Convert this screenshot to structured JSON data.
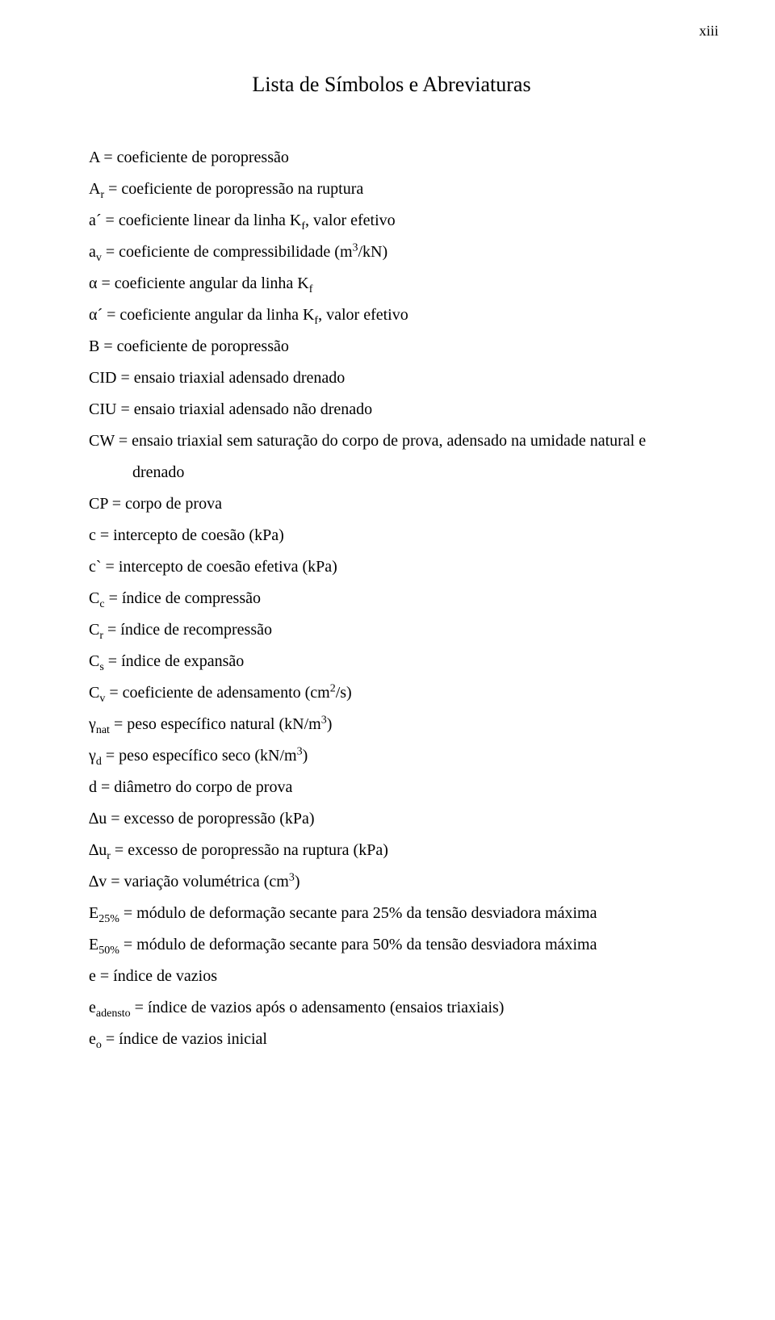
{
  "page_number": "xiii",
  "title": "Lista de Símbolos e Abreviaturas",
  "entries": [
    {
      "html": "A = coeficiente de poropressão"
    },
    {
      "html": "A<sub>r</sub> = coeficiente de poropressão na ruptura"
    },
    {
      "html": "a´ = coeficiente linear da linha K<sub>f</sub>, valor efetivo"
    },
    {
      "html": "a<sub>v</sub> = coeficiente de compressibilidade (m<sup>3</sup>/kN)"
    },
    {
      "html": "α = coeficiente angular da linha K<sub>f</sub>"
    },
    {
      "html": "α´ = coeficiente angular da linha K<sub>f</sub>, valor efetivo"
    },
    {
      "html": "B = coeficiente de poropressão"
    },
    {
      "html": "CID = ensaio triaxial adensado drenado"
    },
    {
      "html": "CIU = ensaio triaxial adensado não drenado"
    },
    {
      "html": "CW = ensaio triaxial sem saturação do corpo de prova, adensado na umidade natural e"
    },
    {
      "html": "drenado",
      "indent": true
    },
    {
      "html": "CP = corpo de prova"
    },
    {
      "html": "c = intercepto de coesão (kPa)"
    },
    {
      "html": "c` = intercepto de coesão efetiva (kPa)"
    },
    {
      "html": "C<sub>c</sub> = índice de compressão"
    },
    {
      "html": "C<sub>r</sub> = índice de recompressão"
    },
    {
      "html": "C<sub>s</sub> = índice de expansão"
    },
    {
      "html": "C<sub>v</sub> = coeficiente de adensamento (cm<sup>2</sup>/s)"
    },
    {
      "html": "γ<sub>nat</sub> = peso específico natural (kN/m<sup>3</sup>)"
    },
    {
      "html": "γ<sub>d</sub> = peso específico seco (kN/m<sup>3</sup>)"
    },
    {
      "html": "d = diâmetro do corpo de prova"
    },
    {
      "html": "∆u = excesso de poropressão (kPa)"
    },
    {
      "html": "∆u<sub>r</sub> = excesso de poropressão na ruptura (kPa)"
    },
    {
      "html": "∆v = variação volumétrica (cm<sup>3</sup>)"
    },
    {
      "html": "E<sub>25%</sub> = módulo de deformação secante para 25% da tensão desviadora máxima"
    },
    {
      "html": "E<sub>50%</sub> = módulo de deformação secante para 50% da tensão desviadora máxima"
    },
    {
      "html": "e = índice de vazios"
    },
    {
      "html": "e<sub>adensto</sub> = índice de vazios após o adensamento (ensaios triaxiais)"
    },
    {
      "html": "e<sub>o</sub> = índice de vazios inicial"
    }
  ]
}
